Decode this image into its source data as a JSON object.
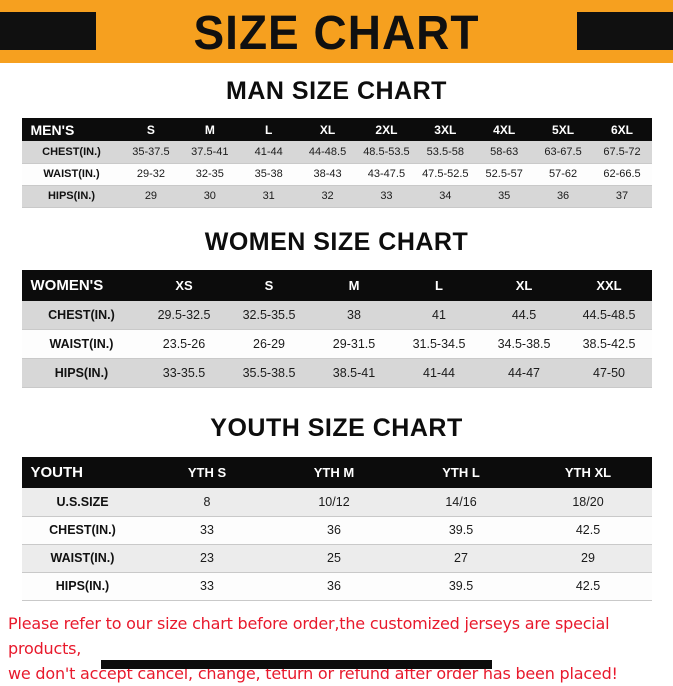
{
  "banner": {
    "title": "SIZE CHART",
    "bg_color": "#f6a01f",
    "bar_color": "#101010"
  },
  "sections": [
    {
      "id": "men",
      "heading": "MAN SIZE CHART",
      "header": [
        "MEN'S",
        "S",
        "M",
        "L",
        "XL",
        "2XL",
        "3XL",
        "4XL",
        "5XL",
        "6XL"
      ],
      "rows": [
        [
          "CHEST(IN.)",
          "35-37.5",
          "37.5-41",
          "41-44",
          "44-48.5",
          "48.5-53.5",
          "53.5-58",
          "58-63",
          "63-67.5",
          "67.5-72"
        ],
        [
          "WAIST(IN.)",
          "29-32",
          "32-35",
          "35-38",
          "38-43",
          "43-47.5",
          "47.5-52.5",
          "52.5-57",
          "57-62",
          "62-66.5"
        ],
        [
          "HIPS(IN.)",
          "29",
          "30",
          "31",
          "32",
          "33",
          "34",
          "35",
          "36",
          "37"
        ]
      ]
    },
    {
      "id": "women",
      "heading": "WOMEN SIZE CHART",
      "header": [
        "WOMEN'S",
        "XS",
        "S",
        "M",
        "L",
        "XL",
        "XXL"
      ],
      "rows": [
        [
          "CHEST(IN.)",
          "29.5-32.5",
          "32.5-35.5",
          "38",
          "41",
          "44.5",
          "44.5-48.5"
        ],
        [
          "WAIST(IN.)",
          "23.5-26",
          "26-29",
          "29-31.5",
          "31.5-34.5",
          "34.5-38.5",
          "38.5-42.5"
        ],
        [
          "HIPS(IN.)",
          "33-35.5",
          "35.5-38.5",
          "38.5-41",
          "41-44",
          "44-47",
          "47-50"
        ]
      ]
    },
    {
      "id": "youth",
      "heading": "YOUTH SIZE CHART",
      "header": [
        "YOUTH",
        "YTH S",
        "YTH M",
        "YTH L",
        "YTH XL"
      ],
      "rows": [
        [
          "U.S.SIZE",
          "8",
          "10/12",
          "14/16",
          "18/20"
        ],
        [
          "CHEST(IN.)",
          "33",
          "36",
          "39.5",
          "42.5"
        ],
        [
          "WAIST(IN.)",
          "23",
          "25",
          "27",
          "29"
        ],
        [
          "HIPS(IN.)",
          "33",
          "36",
          "39.5",
          "42.5"
        ]
      ]
    }
  ],
  "footer": {
    "line1": "Please refer to our size chart before order,the customized jerseys are special products,",
    "line2": "we don't accept cancel, change, teturn or refund after order has been placed!",
    "color": "#e8192c"
  }
}
